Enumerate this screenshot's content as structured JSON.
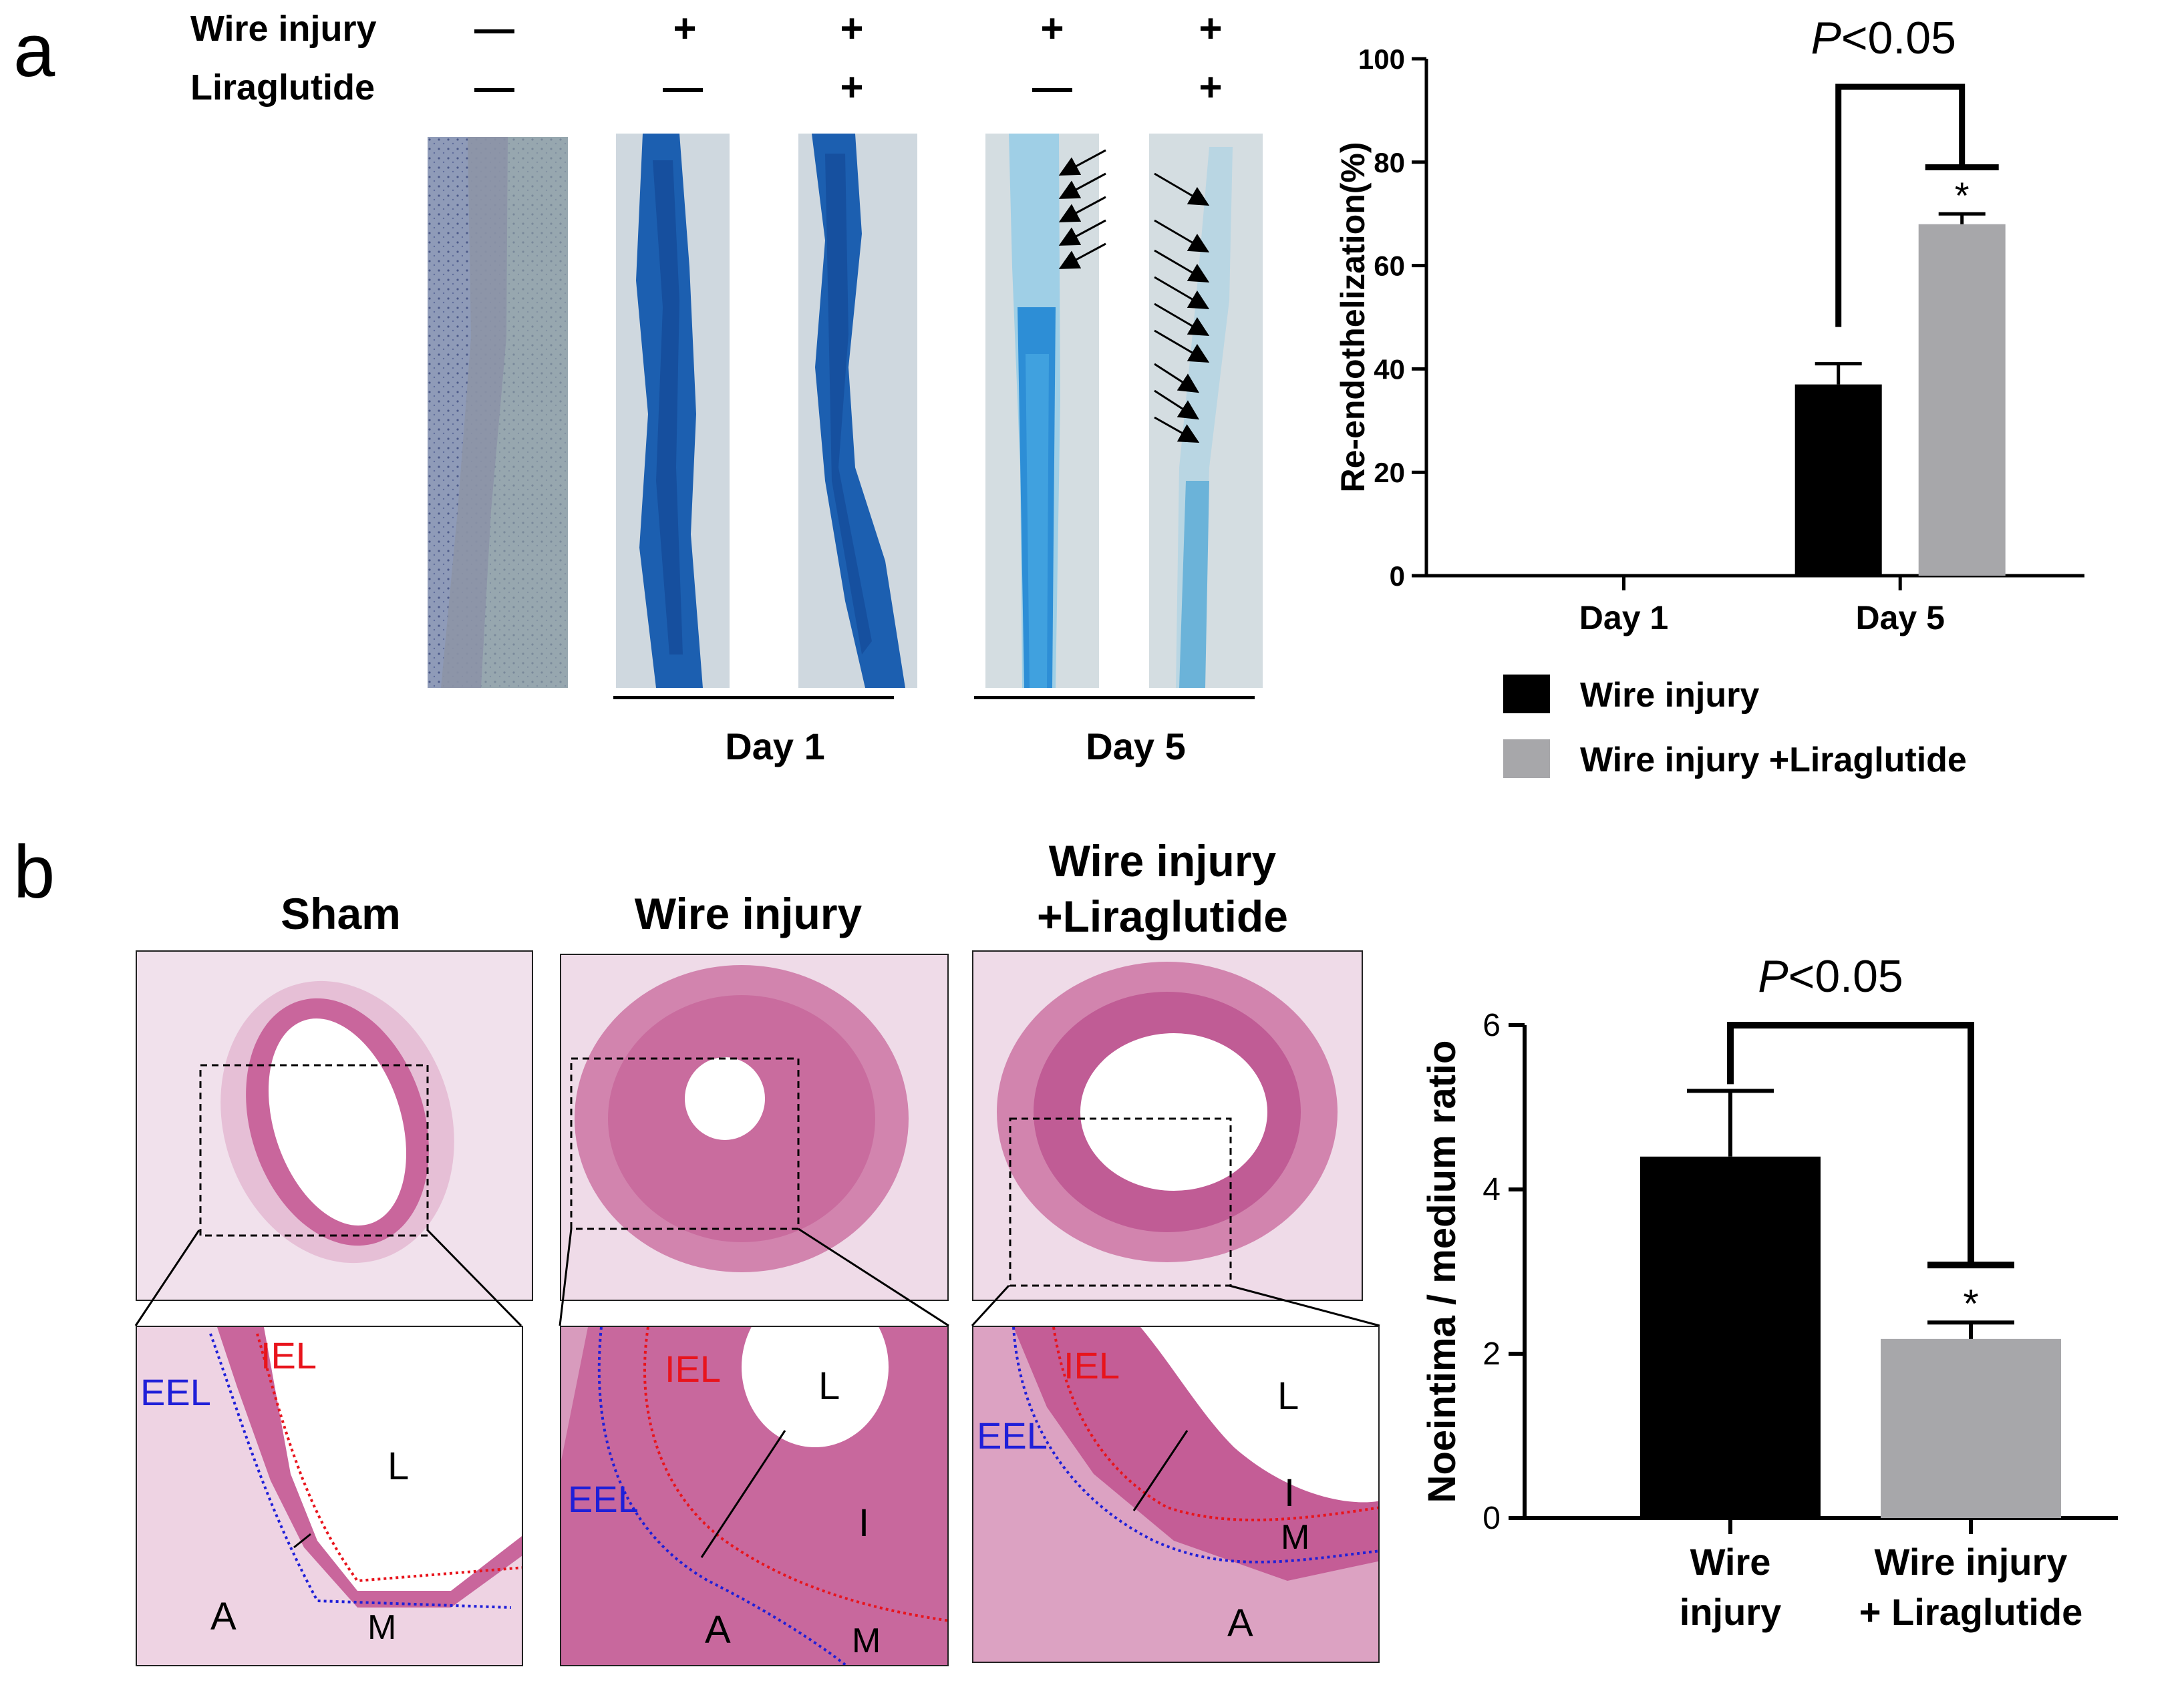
{
  "panel_a": {
    "letter": "a",
    "row_labels": [
      "Wire injury",
      "Liraglutide"
    ],
    "columns": [
      {
        "wire": "—",
        "lira": "—"
      },
      {
        "wire": "+",
        "lira": "—"
      },
      {
        "wire": "+",
        "lira": "+"
      },
      {
        "wire": "+",
        "lira": "—"
      },
      {
        "wire": "+",
        "lira": "+"
      }
    ],
    "group_labels": [
      "Day 1",
      "Day 5"
    ]
  },
  "panel_b": {
    "letter": "b",
    "titles": [
      "Sham",
      "Wire injury",
      "Wire injury\n+Liraglutide"
    ],
    "zoom_labels": {
      "iel": "IEL",
      "eel": "EEL",
      "lumen": "L",
      "adventitia": "A",
      "media": "M",
      "intima": "I"
    }
  },
  "colors": {
    "black_bar": "#000000",
    "gray_bar": "#a7a7aa",
    "iel": "#e8141c",
    "eel": "#1f1fd8",
    "blue_stain": "#1c5fb0",
    "he_pink": "#c9669c"
  },
  "chart_data": [
    {
      "type": "bar",
      "ylabel": "Re-endothelization(%)",
      "ylim": [
        0,
        100
      ],
      "yticks": [
        0,
        20,
        40,
        60,
        80,
        100
      ],
      "categories": [
        "Day 1",
        "Day 5"
      ],
      "series": [
        {
          "name": "Wire injury",
          "values": [
            0,
            37
          ],
          "errors": [
            0,
            4
          ],
          "color": "#000000"
        },
        {
          "name": "Wire injury +Liraglutide",
          "values": [
            0,
            68
          ],
          "errors": [
            0,
            2
          ],
          "color": "#a7a7aa"
        }
      ],
      "significance": {
        "label_italic": "P",
        "label_rest": "<0.05",
        "star": "*"
      },
      "legend": [
        "Wire injury",
        "Wire injury +Liraglutide"
      ]
    },
    {
      "type": "bar",
      "ylabel": "Noeintima / medium ratio",
      "ylim": [
        0,
        6
      ],
      "yticks": [
        0,
        2,
        4,
        6
      ],
      "categories": [
        "Wire\ninjury",
        "Wire injury\n+ Liraglutide"
      ],
      "values": [
        4.4,
        2.18
      ],
      "errors": [
        0.8,
        0.2
      ],
      "colors": [
        "#000000",
        "#a7a7aa"
      ],
      "significance": {
        "label_italic": "P",
        "label_rest": "<0.05",
        "star": "*"
      }
    }
  ]
}
